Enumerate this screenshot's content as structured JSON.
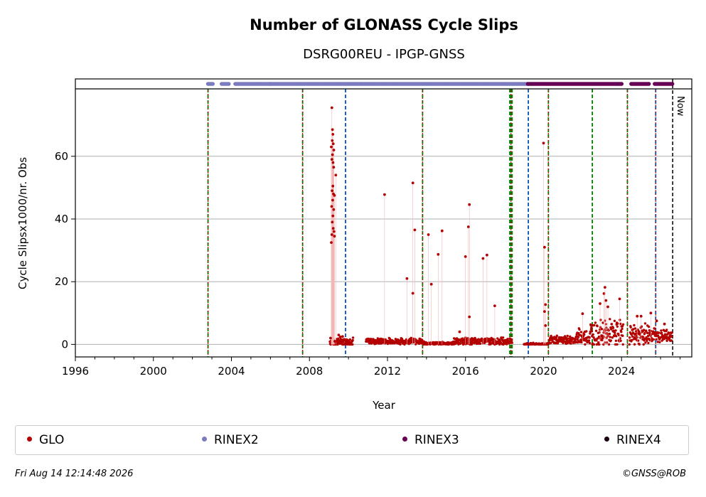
{
  "chart_data": {
    "type": "scatter",
    "title": "Number of GLONASS Cycle Slips",
    "subtitle": "DSRG00REU - IPGP-GNSS",
    "xlabel": "Year",
    "ylabel": "Cycle Slipsx1000/nr. Obs",
    "xlim": [
      1996,
      2027.6
    ],
    "ylim": [
      -4,
      81.5
    ],
    "x_ticks": [
      1996,
      2000,
      2004,
      2008,
      2012,
      2016,
      2020,
      2024
    ],
    "y_ticks": [
      0,
      20,
      40,
      60
    ],
    "grid": "horizontal",
    "legend_placement": "bottom",
    "now_label": "Now",
    "now_x": 2026.62,
    "series": [
      {
        "name": "GLO",
        "color": "#b30000",
        "points": [
          [
            2009.15,
            75.5
          ],
          [
            2009.18,
            68.5
          ],
          [
            2009.2,
            67
          ],
          [
            2009.17,
            65
          ],
          [
            2009.22,
            64
          ],
          [
            2009.12,
            63
          ],
          [
            2009.25,
            62
          ],
          [
            2009.18,
            60.5
          ],
          [
            2009.15,
            59
          ],
          [
            2009.21,
            58
          ],
          [
            2009.24,
            56.5
          ],
          [
            2009.35,
            54
          ],
          [
            2009.2,
            50.5
          ],
          [
            2009.16,
            49
          ],
          [
            2009.23,
            48
          ],
          [
            2009.28,
            47.5
          ],
          [
            2009.19,
            46
          ],
          [
            2009.14,
            44
          ],
          [
            2009.24,
            43
          ],
          [
            2009.2,
            41
          ],
          [
            2009.17,
            39
          ],
          [
            2009.22,
            37
          ],
          [
            2009.26,
            36
          ],
          [
            2009.15,
            35
          ],
          [
            2009.28,
            34.5
          ],
          [
            2009.12,
            32.5
          ],
          [
            2009.08,
            2
          ],
          [
            2009.3,
            1
          ],
          [
            2009.5,
            3
          ],
          [
            2009.7,
            2.5
          ],
          [
            2009.9,
            1.5
          ],
          [
            2010.1,
            0.5
          ],
          [
            2011.85,
            47.8
          ],
          [
            2013.3,
            51.5
          ],
          [
            2013.4,
            36.5
          ],
          [
            2013.0,
            21
          ],
          [
            2013.3,
            16.3
          ],
          [
            2014.1,
            35
          ],
          [
            2014.25,
            19.2
          ],
          [
            2014.6,
            28.7
          ],
          [
            2014.8,
            36.2
          ],
          [
            2016.0,
            28
          ],
          [
            2016.2,
            44.6
          ],
          [
            2016.15,
            37.5
          ],
          [
            2016.2,
            8.8
          ],
          [
            2016.9,
            27.4
          ],
          [
            2017.1,
            28.5
          ],
          [
            2017.5,
            12.3
          ],
          [
            2015.7,
            4
          ],
          [
            2020.0,
            64.2
          ],
          [
            2020.05,
            31
          ],
          [
            2020.1,
            12.7
          ],
          [
            2020.05,
            10.5
          ],
          [
            2020.1,
            6
          ],
          [
            2022.0,
            9.8
          ],
          [
            2022.9,
            13
          ],
          [
            2023.1,
            16.2
          ],
          [
            2023.15,
            18.2
          ],
          [
            2023.2,
            14
          ],
          [
            2023.9,
            14.5
          ],
          [
            2023.3,
            12
          ],
          [
            2024.8,
            9
          ],
          [
            2025.5,
            10
          ],
          [
            2025.0,
            9
          ],
          [
            2025.8,
            7.5
          ],
          [
            2026.2,
            6.5
          ]
        ],
        "segments": [
          {
            "x_start": 2009.05,
            "x_end": 2010.25,
            "base": 0.8,
            "spread": 2.5
          },
          {
            "x_start": 2010.9,
            "x_end": 2013.8,
            "base": 0.9,
            "spread": 1.6
          },
          {
            "x_start": 2013.8,
            "x_end": 2015.4,
            "base": 0.3,
            "spread": 0.8
          },
          {
            "x_start": 2015.4,
            "x_end": 2018.4,
            "base": 0.9,
            "spread": 1.8
          },
          {
            "x_start": 2019.0,
            "x_end": 2020.3,
            "base": 0.1,
            "spread": 0.5
          },
          {
            "x_start": 2020.3,
            "x_end": 2021.7,
            "base": 1.3,
            "spread": 2.2
          },
          {
            "x_start": 2021.7,
            "x_end": 2022.4,
            "base": 2.0,
            "spread": 4.5
          },
          {
            "x_start": 2022.4,
            "x_end": 2024.1,
            "base": 3.0,
            "spread": 7.0
          },
          {
            "x_start": 2024.4,
            "x_end": 2025.7,
            "base": 3.0,
            "spread": 5.5
          },
          {
            "x_start": 2025.7,
            "x_end": 2026.6,
            "base": 2.5,
            "spread": 3.5
          }
        ]
      },
      {
        "name": "RINEX2",
        "color": "#7b7bc0",
        "ranges": [
          [
            2002.8,
            2003.05
          ],
          [
            2003.5,
            2003.9
          ],
          [
            2004.2,
            2006.0
          ],
          [
            2006.0,
            2019.2
          ]
        ]
      },
      {
        "name": "RINEX3",
        "color": "#660055",
        "ranges": [
          [
            2019.2,
            2024.0
          ],
          [
            2024.5,
            2025.4
          ],
          [
            2025.7,
            2026.6
          ]
        ]
      },
      {
        "name": "RINEX4",
        "color": "#1a0010",
        "ranges": []
      }
    ],
    "event_lines": [
      {
        "x": 2002.8,
        "color": "#008000",
        "style": "dashed",
        "overlay": "#d00000"
      },
      {
        "x": 2007.65,
        "color": "#008000",
        "style": "dashed",
        "overlay": "#d00000"
      },
      {
        "x": 2009.85,
        "color": "#0055bb",
        "style": "dashed"
      },
      {
        "x": 2013.8,
        "color": "#008000",
        "style": "dashed",
        "overlay": "#d00000"
      },
      {
        "x": 2018.27,
        "color": "#008000",
        "style": "dashed"
      },
      {
        "x": 2018.33,
        "color": "#008000",
        "style": "dashed",
        "overlay": "#d00000"
      },
      {
        "x": 2018.39,
        "color": "#008000",
        "style": "dashed"
      },
      {
        "x": 2019.22,
        "color": "#0055bb",
        "style": "dashed"
      },
      {
        "x": 2020.25,
        "color": "#008000",
        "style": "dashed",
        "overlay": "#d00000"
      },
      {
        "x": 2022.5,
        "color": "#008000",
        "style": "dashed"
      },
      {
        "x": 2024.3,
        "color": "#008000",
        "style": "dashed",
        "overlay": "#d00000"
      },
      {
        "x": 2025.75,
        "color": "#0055bb",
        "style": "dashed",
        "overlay": "#d00000"
      }
    ]
  },
  "legend": {
    "items": [
      {
        "label": "GLO",
        "color": "#b30000"
      },
      {
        "label": "RINEX2",
        "color": "#7b7bc0"
      },
      {
        "label": "RINEX3",
        "color": "#660055"
      },
      {
        "label": "RINEX4",
        "color": "#1a0010"
      }
    ]
  },
  "footer": {
    "timestamp": "Fri Aug 14 12:14:48 2026",
    "copyright": "©GNSS@ROB"
  }
}
